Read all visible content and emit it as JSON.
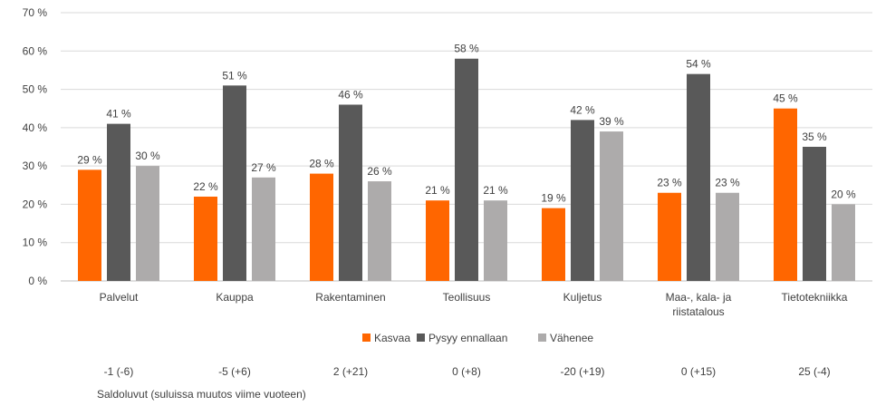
{
  "chart_data": {
    "type": "bar",
    "categories": [
      [
        "Palvelut"
      ],
      [
        "Kauppa"
      ],
      [
        "Rakentaminen"
      ],
      [
        "Teollisuus"
      ],
      [
        "Kuljetus"
      ],
      [
        "Maa-, kala- ja",
        "riistatalous"
      ],
      [
        "Tietotekniikka"
      ]
    ],
    "series": [
      {
        "name": "Kasvaa",
        "color": "#ff6600",
        "values": [
          29,
          22,
          28,
          21,
          19,
          23,
          45
        ]
      },
      {
        "name": "Pysyy ennallaan",
        "color": "#595959",
        "values": [
          41,
          51,
          46,
          58,
          42,
          54,
          35
        ]
      },
      {
        "name": "Vähenee",
        "color": "#adabab",
        "values": [
          30,
          27,
          26,
          21,
          39,
          23,
          20
        ]
      }
    ],
    "ylim": [
      0,
      70
    ],
    "yticks": [
      0,
      10,
      20,
      30,
      40,
      50,
      60,
      70
    ],
    "tick_suffix": " %",
    "value_suffix": "  %",
    "grid": true,
    "legend_position": "bottom",
    "saldo": [
      "-1 (-6)",
      "-5 (+6)",
      "2 (+21)",
      "0 (+8)",
      "-20 (+19)",
      "0 (+15)",
      "25 (-4)"
    ],
    "saldo_note": "Saldoluvut (suluissa muutos viime vuoteen)"
  }
}
